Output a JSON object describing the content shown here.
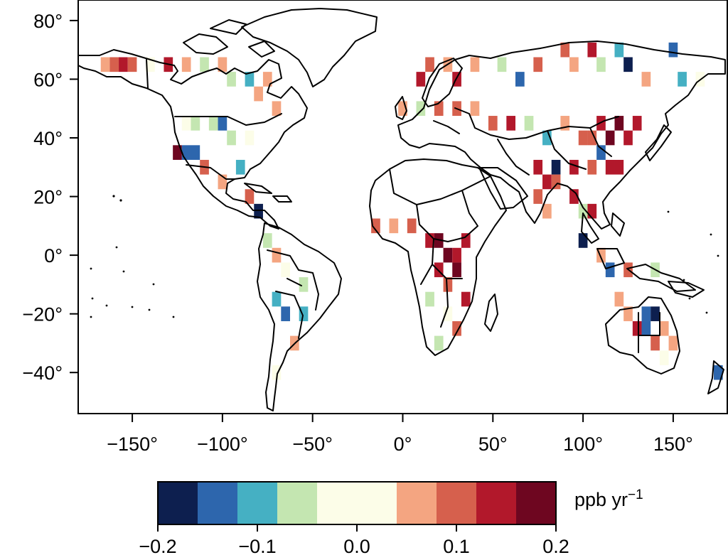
{
  "map": {
    "x_ticks": [
      "−150°",
      "−100°",
      "−50°",
      "0°",
      "50°",
      "100°",
      "150°"
    ],
    "x_tick_values": [
      -150,
      -100,
      -50,
      0,
      50,
      100,
      150
    ],
    "y_ticks": [
      "80°",
      "60°",
      "40°",
      "20°",
      "0°",
      "−20°",
      "−40°"
    ],
    "y_tick_values": [
      80,
      60,
      40,
      20,
      0,
      -20,
      -40
    ],
    "lon_range": [
      -180,
      180
    ],
    "lat_range": [
      -54,
      87
    ],
    "grid_resolution_deg": 5,
    "frame_color": "#000000",
    "coastline_color": "#000000"
  },
  "colorbar": {
    "unit_label": "ppb yr",
    "unit_exponent": "−1",
    "tick_labels": [
      "−0.2",
      "−0.1",
      "0.0",
      "0.1",
      "0.2"
    ],
    "range": [
      -0.2,
      0.2
    ],
    "bins": [
      {
        "min": -0.2,
        "max": -0.16,
        "color": "#0d1f4f"
      },
      {
        "min": -0.16,
        "max": -0.12,
        "color": "#2d66ad"
      },
      {
        "min": -0.12,
        "max": -0.08,
        "color": "#45b0c3"
      },
      {
        "min": -0.08,
        "max": -0.04,
        "color": "#c4e6b1"
      },
      {
        "min": -0.04,
        "max": 0.04,
        "color": "#fcfde8"
      },
      {
        "min": 0.04,
        "max": 0.08,
        "color": "#f4a581"
      },
      {
        "min": 0.08,
        "max": 0.12,
        "color": "#d6604d"
      },
      {
        "min": 0.12,
        "max": 0.16,
        "color": "#b2182b"
      },
      {
        "min": 0.16,
        "max": 0.2,
        "color": "#6e0620"
      }
    ]
  },
  "chart_data": {
    "type": "heatmap",
    "title": "",
    "xlabel": "",
    "ylabel": "",
    "value_unit": "ppb yr−1",
    "cells": [
      {
        "lon": -165,
        "lat": 65,
        "v": 0.05
      },
      {
        "lon": -160,
        "lat": 65,
        "v": 0.11
      },
      {
        "lon": -155,
        "lat": 65,
        "v": 0.14
      },
      {
        "lon": -150,
        "lat": 65,
        "v": 0.09
      },
      {
        "lon": -140,
        "lat": 65,
        "v": 0.02
      },
      {
        "lon": -130,
        "lat": 65,
        "v": 0.14
      },
      {
        "lon": -120,
        "lat": 65,
        "v": 0.06
      },
      {
        "lon": -110,
        "lat": 65,
        "v": -0.05
      },
      {
        "lon": -100,
        "lat": 65,
        "v": 0.05
      },
      {
        "lon": -95,
        "lat": 60,
        "v": -0.06
      },
      {
        "lon": -85,
        "lat": 60,
        "v": -0.1
      },
      {
        "lon": -80,
        "lat": 55,
        "v": 0.06
      },
      {
        "lon": -75,
        "lat": 60,
        "v": 0.07
      },
      {
        "lon": -70,
        "lat": 50,
        "v": 0.05
      },
      {
        "lon": -120,
        "lat": 45,
        "v": 0.02
      },
      {
        "lon": -115,
        "lat": 45,
        "v": -0.05
      },
      {
        "lon": -105,
        "lat": 45,
        "v": -0.05
      },
      {
        "lon": -100,
        "lat": 45,
        "v": -0.14
      },
      {
        "lon": -95,
        "lat": 40,
        "v": -0.05
      },
      {
        "lon": -85,
        "lat": 40,
        "v": 0.01
      },
      {
        "lon": -125,
        "lat": 35,
        "v": 0.18
      },
      {
        "lon": -120,
        "lat": 35,
        "v": -0.14
      },
      {
        "lon": -115,
        "lat": 35,
        "v": -0.16
      },
      {
        "lon": -110,
        "lat": 30,
        "v": 0.09
      },
      {
        "lon": -100,
        "lat": 25,
        "v": 0.06
      },
      {
        "lon": -90,
        "lat": 30,
        "v": -0.1
      },
      {
        "lon": -85,
        "lat": 20,
        "v": 0.1
      },
      {
        "lon": -80,
        "lat": 15,
        "v": -0.18
      },
      {
        "lon": -75,
        "lat": 5,
        "v": -0.07
      },
      {
        "lon": -70,
        "lat": 0,
        "v": 0.07
      },
      {
        "lon": -65,
        "lat": -5,
        "v": 0.02
      },
      {
        "lon": -55,
        "lat": -10,
        "v": -0.05
      },
      {
        "lon": -70,
        "lat": -15,
        "v": -0.11
      },
      {
        "lon": -65,
        "lat": -20,
        "v": -0.14
      },
      {
        "lon": -55,
        "lat": -20,
        "v": -0.1
      },
      {
        "lon": -60,
        "lat": -30,
        "v": 0.06
      },
      {
        "lon": -70,
        "lat": -40,
        "v": 0.03
      },
      {
        "lon": 10,
        "lat": 60,
        "v": 0.13
      },
      {
        "lon": 15,
        "lat": 65,
        "v": 0.09
      },
      {
        "lon": 25,
        "lat": 65,
        "v": 0.07
      },
      {
        "lon": 30,
        "lat": 60,
        "v": 0.13
      },
      {
        "lon": 40,
        "lat": 65,
        "v": 0.07
      },
      {
        "lon": 55,
        "lat": 65,
        "v": -0.06
      },
      {
        "lon": 65,
        "lat": 60,
        "v": -0.14
      },
      {
        "lon": 75,
        "lat": 65,
        "v": 0.08
      },
      {
        "lon": 90,
        "lat": 70,
        "v": 0.11
      },
      {
        "lon": 95,
        "lat": 65,
        "v": 0.06
      },
      {
        "lon": 105,
        "lat": 70,
        "v": 0.13
      },
      {
        "lon": 110,
        "lat": 65,
        "v": -0.06
      },
      {
        "lon": 120,
        "lat": 70,
        "v": -0.11
      },
      {
        "lon": 125,
        "lat": 65,
        "v": -0.19
      },
      {
        "lon": 135,
        "lat": 60,
        "v": 0.07
      },
      {
        "lon": 150,
        "lat": 70,
        "v": -0.15
      },
      {
        "lon": 155,
        "lat": 60,
        "v": -0.11
      },
      {
        "lon": 165,
        "lat": 60,
        "v": 0.02
      },
      {
        "lon": 0,
        "lat": 50,
        "v": 0.06
      },
      {
        "lon": 10,
        "lat": 50,
        "v": -0.05
      },
      {
        "lon": 20,
        "lat": 50,
        "v": 0.1
      },
      {
        "lon": 30,
        "lat": 50,
        "v": 0.08
      },
      {
        "lon": 40,
        "lat": 50,
        "v": 0.05
      },
      {
        "lon": 50,
        "lat": 45,
        "v": 0.09
      },
      {
        "lon": 60,
        "lat": 45,
        "v": 0.12
      },
      {
        "lon": 70,
        "lat": 45,
        "v": -0.05
      },
      {
        "lon": 80,
        "lat": 40,
        "v": -0.1
      },
      {
        "lon": 90,
        "lat": 45,
        "v": 0.06
      },
      {
        "lon": 100,
        "lat": 40,
        "v": 0.1
      },
      {
        "lon": 105,
        "lat": 40,
        "v": 0.09
      },
      {
        "lon": 110,
        "lat": 45,
        "v": 0.14
      },
      {
        "lon": 115,
        "lat": 40,
        "v": 0.16
      },
      {
        "lon": 120,
        "lat": 45,
        "v": 0.18
      },
      {
        "lon": 125,
        "lat": 40,
        "v": 0.15
      },
      {
        "lon": 130,
        "lat": 45,
        "v": 0.13
      },
      {
        "lon": 110,
        "lat": 35,
        "v": -0.15
      },
      {
        "lon": 115,
        "lat": 30,
        "v": 0.15
      },
      {
        "lon": 120,
        "lat": 30,
        "v": 0.12
      },
      {
        "lon": 105,
        "lat": 30,
        "v": 0.11
      },
      {
        "lon": 95,
        "lat": 30,
        "v": 0.13
      },
      {
        "lon": 85,
        "lat": 30,
        "v": -0.18
      },
      {
        "lon": 75,
        "lat": 30,
        "v": 0.14
      },
      {
        "lon": 80,
        "lat": 25,
        "v": 0.12
      },
      {
        "lon": 85,
        "lat": 25,
        "v": 0.1
      },
      {
        "lon": 75,
        "lat": 20,
        "v": 0.09
      },
      {
        "lon": 80,
        "lat": 15,
        "v": 0.06
      },
      {
        "lon": 95,
        "lat": 20,
        "v": 0.12
      },
      {
        "lon": 100,
        "lat": 15,
        "v": -0.06
      },
      {
        "lon": 105,
        "lat": 15,
        "v": 0.13
      },
      {
        "lon": 100,
        "lat": 5,
        "v": -0.18
      },
      {
        "lon": 110,
        "lat": 0,
        "v": 0.07
      },
      {
        "lon": 115,
        "lat": -5,
        "v": -0.14
      },
      {
        "lon": 125,
        "lat": -5,
        "v": 0.1
      },
      {
        "lon": 140,
        "lat": -5,
        "v": -0.07
      },
      {
        "lon": -15,
        "lat": 10,
        "v": 0.09
      },
      {
        "lon": -5,
        "lat": 10,
        "v": 0.06
      },
      {
        "lon": 5,
        "lat": 10,
        "v": 0.1
      },
      {
        "lon": 15,
        "lat": 5,
        "v": 0.13
      },
      {
        "lon": 20,
        "lat": 5,
        "v": 0.16
      },
      {
        "lon": 25,
        "lat": 0,
        "v": 0.17
      },
      {
        "lon": 30,
        "lat": 0,
        "v": 0.15
      },
      {
        "lon": 20,
        "lat": -5,
        "v": 0.14
      },
      {
        "lon": 30,
        "lat": -5,
        "v": 0.18
      },
      {
        "lon": 35,
        "lat": 5,
        "v": 0.12
      },
      {
        "lon": 25,
        "lat": -10,
        "v": 0.11
      },
      {
        "lon": 15,
        "lat": -15,
        "v": -0.05
      },
      {
        "lon": 35,
        "lat": -15,
        "v": 0.13
      },
      {
        "lon": 25,
        "lat": -20,
        "v": 0.02
      },
      {
        "lon": 30,
        "lat": -25,
        "v": 0.08
      },
      {
        "lon": 20,
        "lat": -30,
        "v": -0.05
      },
      {
        "lon": 120,
        "lat": -15,
        "v": 0.06
      },
      {
        "lon": 125,
        "lat": -20,
        "v": 0.05
      },
      {
        "lon": 135,
        "lat": -20,
        "v": -0.14
      },
      {
        "lon": 140,
        "lat": -20,
        "v": -0.19
      },
      {
        "lon": 135,
        "lat": -25,
        "v": -0.15
      },
      {
        "lon": 130,
        "lat": -25,
        "v": 0.14
      },
      {
        "lon": 145,
        "lat": -25,
        "v": 0.07
      },
      {
        "lon": 140,
        "lat": -30,
        "v": 0.09
      },
      {
        "lon": 150,
        "lat": -30,
        "v": 0.05
      },
      {
        "lon": 145,
        "lat": -35,
        "v": 0.03
      },
      {
        "lon": 175,
        "lat": -40,
        "v": -0.14
      }
    ]
  }
}
